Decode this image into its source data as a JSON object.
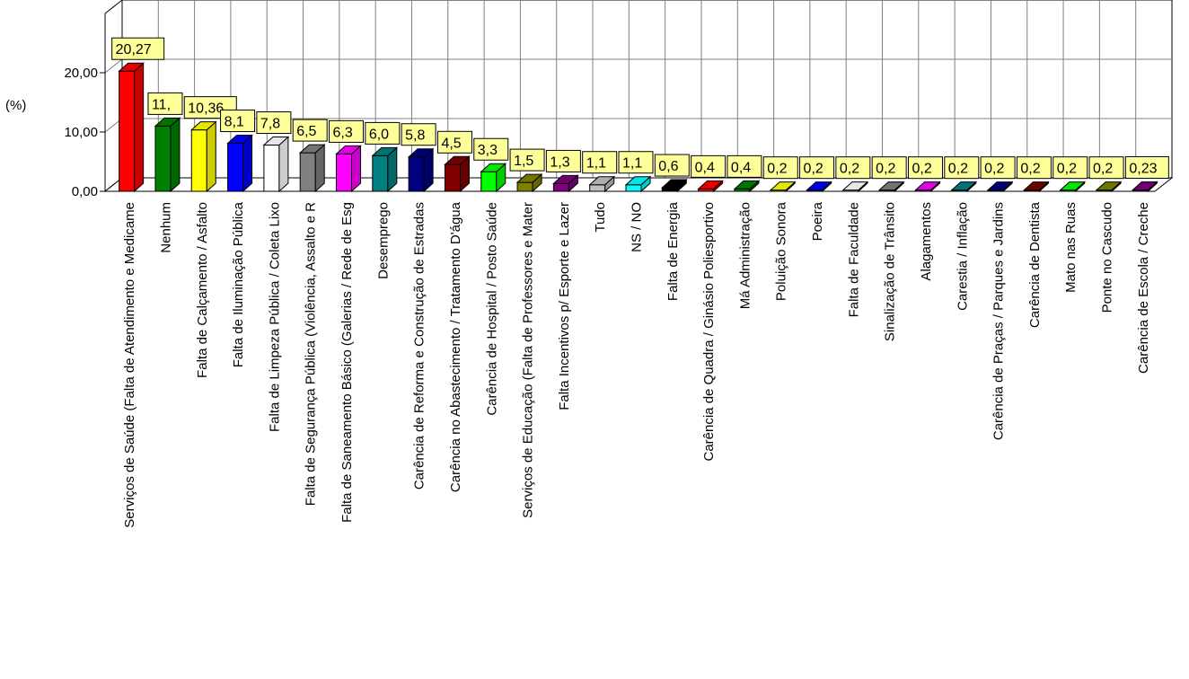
{
  "chart_data": {
    "type": "bar",
    "ylabel": "(%)",
    "ylim": [
      0,
      30
    ],
    "yticks": [
      "0,00",
      "10,00",
      "20,00"
    ],
    "grid": true,
    "legend": "none",
    "categories": [
      "Serviços de Saúde (Falta de Atendimento e Medicame",
      "Nenhum",
      "Falta de Calçamento / Asfalto",
      "Falta de Iluminação Pública",
      "Falta de Limpeza Pública / Coleta Lixo",
      "Falta de Segurança Pública (Violência, Assalto e R",
      "Falta de Saneamento Básico (Galerias / Rede de Esg",
      "Desemprego",
      "Carência de Reforma e Construção de Estradas",
      "Carência no Abastecimento / Tratamento D'água",
      "Carência de Hospital / Posto Saúde",
      "Serviços de Educação (Falta de Professores e Mater",
      "Falta Incentivos p/ Esporte e Lazer",
      "Tudo",
      "NS / NO",
      "Falta de Energia",
      "Carência de Quadra / Ginásio Poliesportivo",
      "Má Administração",
      "Poluição Sonora",
      "Poeira",
      "Falta de Faculdade",
      "Sinalização de Trânsito",
      "Alagamentos",
      "Carestia / Inflação",
      "Carência de Praças / Parques e Jardins",
      "Carência de Dentista",
      "Mato nas Ruas",
      "Ponte no Cascudo",
      "Carência de Escola / Creche"
    ],
    "values": [
      20.27,
      11.0,
      10.36,
      8.1,
      7.8,
      6.5,
      6.3,
      6.0,
      5.8,
      4.5,
      3.3,
      1.5,
      1.3,
      1.1,
      1.1,
      0.6,
      0.4,
      0.4,
      0.2,
      0.2,
      0.2,
      0.2,
      0.2,
      0.2,
      0.2,
      0.2,
      0.2,
      0.2,
      0.23
    ],
    "data_labels": [
      "20,27",
      "11,",
      "10,36",
      "8,1",
      "7,8",
      "6,5",
      "6,3",
      "6,0",
      "5,8",
      "4,5",
      "3,3",
      "1,5",
      "1,3",
      "1,1",
      "1,1",
      "0,6",
      "0,4",
      "0,4",
      "0,2",
      "0,2",
      "0,2",
      "0,2",
      "0,2",
      "0,2",
      "0,2",
      "0,2",
      "0,2",
      "0,2",
      "0,23"
    ],
    "colors": [
      "#ff0000",
      "#008000",
      "#ffff00",
      "#0000ff",
      "#ffffff",
      "#808080",
      "#ff00ff",
      "#008080",
      "#000080",
      "#800000",
      "#00ff00",
      "#808000",
      "#800080",
      "#c0c0c0",
      "#00ffff",
      "#000000",
      "#ff0000",
      "#008000",
      "#ffff00",
      "#0000ff",
      "#ffffff",
      "#808080",
      "#ff00ff",
      "#008080",
      "#000080",
      "#800000",
      "#00ff00",
      "#808000",
      "#800080"
    ],
    "label_fill": "#ffff99"
  }
}
